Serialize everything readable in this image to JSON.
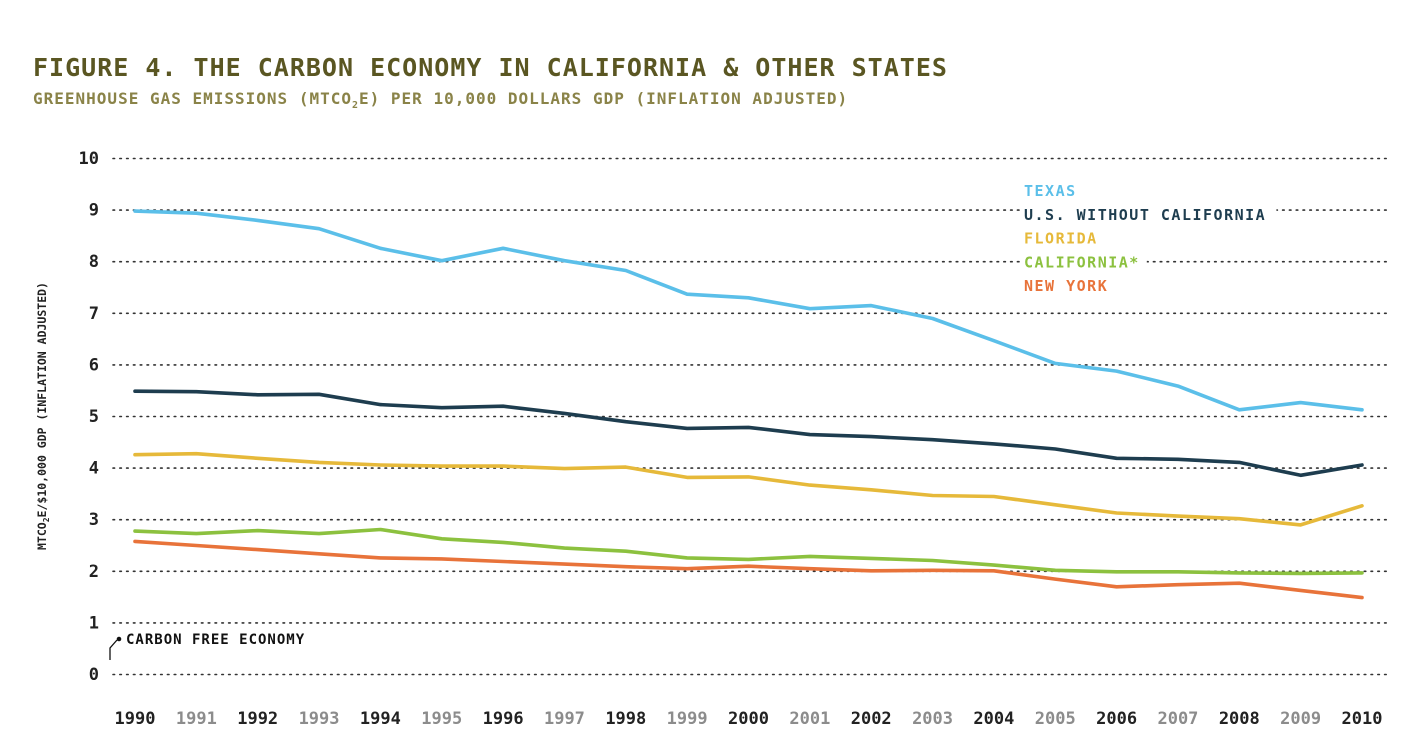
{
  "header": {
    "title": "FIGURE 4. THE CARBON ECONOMY IN CALIFORNIA & OTHER STATES",
    "subtitle_pre": "GREENHOUSE GAS EMISSIONS (MTCO",
    "subtitle_sub": "2",
    "subtitle_post": "E) PER 10,000 DOLLARS GDP (INFLATION ADJUSTED)"
  },
  "chart_data": {
    "type": "line",
    "title": "FIGURE 4. THE CARBON ECONOMY IN CALIFORNIA & OTHER STATES",
    "subtitle": "GREENHOUSE GAS EMISSIONS (MTCO2E) PER 10,000 DOLLARS GDP (INFLATION ADJUSTED)",
    "xlabel": "",
    "ylabel_pre": "MTCO",
    "ylabel_sub": "2",
    "ylabel_post": "E/$10,000 GDP (INFLATION ADJUSTED)",
    "ylim": [
      0,
      10
    ],
    "yticks": [
      0,
      1,
      2,
      3,
      4,
      5,
      6,
      7,
      8,
      9,
      10
    ],
    "x": [
      1990,
      1991,
      1992,
      1993,
      1994,
      1995,
      1996,
      1997,
      1998,
      1999,
      2000,
      2001,
      2002,
      2003,
      2004,
      2005,
      2006,
      2007,
      2008,
      2009,
      2010
    ],
    "xtick_colors": [
      "#222222",
      "#8c8c8c"
    ],
    "grid": "horizontal dotted",
    "legend_position": "top-right",
    "annotation": "CARBON FREE ECONOMY",
    "series": [
      {
        "name": "TEXAS",
        "color": "#5bbfe9",
        "values": [
          8.97,
          8.93,
          8.79,
          8.63,
          8.25,
          8.01,
          8.25,
          8.01,
          7.82,
          7.36,
          7.29,
          7.08,
          7.14,
          6.89,
          6.46,
          6.02,
          5.87,
          5.58,
          5.12,
          5.26,
          5.12
        ]
      },
      {
        "name": "U.S. WITHOUT CALIFORNIA",
        "color": "#1e3d4f",
        "values": [
          5.48,
          5.47,
          5.41,
          5.42,
          5.22,
          5.16,
          5.19,
          5.05,
          4.89,
          4.76,
          4.78,
          4.64,
          4.6,
          4.54,
          4.46,
          4.36,
          4.18,
          4.16,
          4.1,
          3.85,
          4.05
        ]
      },
      {
        "name": "FLORIDA",
        "color": "#e6b93a",
        "values": [
          4.25,
          4.27,
          4.18,
          4.1,
          4.05,
          4.03,
          4.03,
          3.98,
          4.01,
          3.81,
          3.82,
          3.66,
          3.57,
          3.46,
          3.44,
          3.28,
          3.12,
          3.06,
          3.01,
          2.89,
          3.26
        ]
      },
      {
        "name": "CALIFORNIA*",
        "color": "#8cc13f",
        "values": [
          2.77,
          2.72,
          2.78,
          2.72,
          2.8,
          2.62,
          2.55,
          2.44,
          2.38,
          2.25,
          2.22,
          2.28,
          2.24,
          2.2,
          2.11,
          2.01,
          1.98,
          1.98,
          1.96,
          1.95,
          1.96
        ]
      },
      {
        "name": "NEW YORK",
        "color": "#e8733a",
        "values": [
          2.57,
          2.49,
          2.41,
          2.33,
          2.25,
          2.23,
          2.18,
          2.13,
          2.08,
          2.04,
          2.09,
          2.04,
          2.0,
          2.01,
          2.0,
          1.84,
          1.69,
          1.73,
          1.76,
          1.62,
          1.48
        ]
      }
    ]
  }
}
